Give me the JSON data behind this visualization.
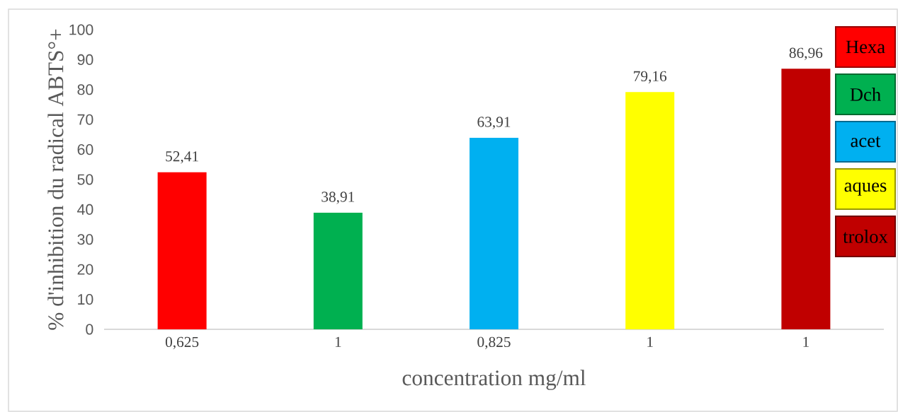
{
  "chart_data": {
    "type": "bar",
    "xlabel": "concentration mg/ml",
    "ylabel": "% d'inhibition du radical ABTS°+",
    "categories": [
      "0,625",
      "1",
      "0,825",
      "1",
      "1"
    ],
    "series": [
      {
        "name": "Hexa",
        "color": "#ff0000",
        "values": [
          52.41,
          null,
          null,
          null,
          null
        ],
        "value_labels": [
          "52,41",
          null,
          null,
          null,
          null
        ]
      },
      {
        "name": "Dch",
        "color": "#00b050",
        "values": [
          null,
          38.91,
          null,
          null,
          null
        ],
        "value_labels": [
          null,
          "38,91",
          null,
          null,
          null
        ]
      },
      {
        "name": "acet",
        "color": "#00b0f0",
        "values": [
          null,
          null,
          63.91,
          null,
          null
        ],
        "value_labels": [
          null,
          null,
          "63,91",
          null,
          null
        ]
      },
      {
        "name": "aques",
        "color": "#ffff00",
        "values": [
          null,
          null,
          null,
          79.16,
          null
        ],
        "value_labels": [
          null,
          null,
          null,
          "79,16",
          null
        ]
      },
      {
        "name": "trolox",
        "color": "#c00000",
        "values": [
          null,
          null,
          null,
          null,
          86.96
        ],
        "value_labels": [
          null,
          null,
          null,
          null,
          "86,96"
        ]
      }
    ],
    "ylim": [
      0,
      100
    ],
    "yticks": [
      0,
      10,
      20,
      30,
      40,
      50,
      60,
      70,
      80,
      90,
      100
    ],
    "legend": "top right"
  }
}
